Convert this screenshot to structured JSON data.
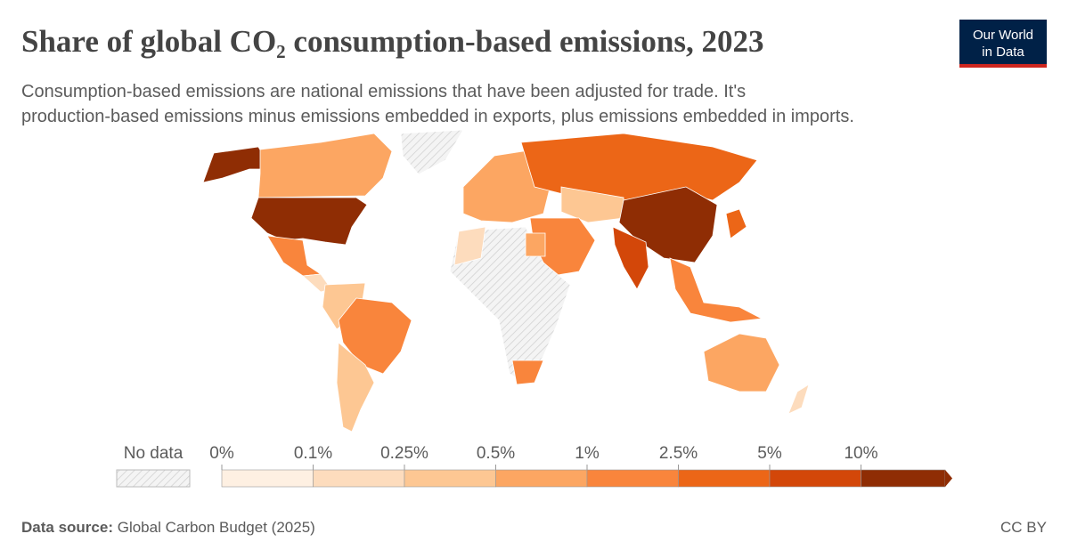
{
  "title": "Share of global CO₂ consumption-based emissions, 2023",
  "subtitle": [
    "Consumption-based emissions are national emissions that have been adjusted for trade. It's",
    "production-based emissions minus emissions embedded in exports, plus emissions embedded in imports."
  ],
  "logo": [
    "Our World",
    "in Data"
  ],
  "legend": {
    "no_data": "No data",
    "labels": [
      "0%",
      "0.1%",
      "0.25%",
      "0.5%",
      "1%",
      "2.5%",
      "5%",
      "10%"
    ],
    "colors": [
      "#fef0e2",
      "#fddcbd",
      "#fdc793",
      "#fca662",
      "#f9853c",
      "#ec6617",
      "#d34709",
      "#8f2d04"
    ]
  },
  "source": {
    "label": "Data source:",
    "text": "Global Carbon Budget (2025)"
  },
  "license": "CC BY"
}
